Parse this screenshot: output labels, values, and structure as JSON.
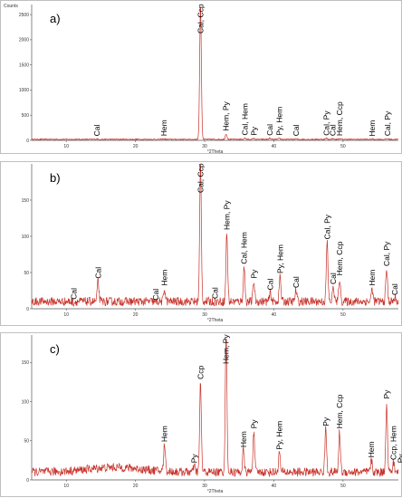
{
  "chart_data": [
    {
      "type": "line",
      "panel_label": "a)",
      "ylabel": "Counts",
      "xlabel": "°2Theta",
      "xlim": [
        5,
        58
      ],
      "ylim": [
        0,
        2700
      ],
      "x_ticks": [
        10,
        20,
        30,
        40,
        50
      ],
      "y_ticks": [
        0,
        500,
        1000,
        1500,
        2000,
        2500
      ],
      "baseline": 20,
      "peaks": [
        {
          "x": 14.4,
          "y": 28,
          "label": "Cal"
        },
        {
          "x": 24.1,
          "y": 30,
          "label": "Hem"
        },
        {
          "x": 29.4,
          "y": 2680,
          "label": "Cal, Ccp"
        },
        {
          "x": 33.1,
          "y": 130,
          "label": "Hem, Py"
        },
        {
          "x": 35.8,
          "y": 45,
          "label": "Cal, Hem"
        },
        {
          "x": 37.1,
          "y": 40,
          "label": "Py"
        },
        {
          "x": 39.4,
          "y": 40,
          "label": "Cal"
        },
        {
          "x": 40.8,
          "y": 40,
          "label": "Py, Hem"
        },
        {
          "x": 43.2,
          "y": 30,
          "label": "Cal"
        },
        {
          "x": 47.6,
          "y": 40,
          "label": "Cal, Py"
        },
        {
          "x": 48.5,
          "y": 35,
          "label": "Cal"
        },
        {
          "x": 49.5,
          "y": 35,
          "label": "Hem, Ccp"
        },
        {
          "x": 54.2,
          "y": 25,
          "label": "Hem"
        },
        {
          "x": 56.4,
          "y": 35,
          "label": "Cal, Py"
        }
      ]
    },
    {
      "type": "line",
      "panel_label": "b)",
      "ylabel": "",
      "xlabel": "°2Theta",
      "xlim": [
        5,
        58
      ],
      "ylim": [
        0,
        200
      ],
      "x_ticks": [
        10,
        20,
        30,
        40,
        50
      ],
      "y_ticks": [
        0,
        50,
        100,
        150
      ],
      "baseline": 10,
      "peaks": [
        {
          "x": 11.1,
          "y": 9,
          "label": "Cal"
        },
        {
          "x": 14.6,
          "y": 38,
          "label": "Cal"
        },
        {
          "x": 22.9,
          "y": 8,
          "label": "Cal"
        },
        {
          "x": 24.2,
          "y": 28,
          "label": "Hem"
        },
        {
          "x": 29.4,
          "y": 200,
          "label": "Cal, Ccp"
        },
        {
          "x": 31.5,
          "y": 10,
          "label": "Cal"
        },
        {
          "x": 33.2,
          "y": 105,
          "label": "Hem, Py"
        },
        {
          "x": 35.7,
          "y": 58,
          "label": "Cal, Hem"
        },
        {
          "x": 37.1,
          "y": 38,
          "label": "Py"
        },
        {
          "x": 39.5,
          "y": 22,
          "label": "Cal"
        },
        {
          "x": 40.9,
          "y": 45,
          "label": "Py, Hem"
        },
        {
          "x": 43.2,
          "y": 25,
          "label": "Cal"
        },
        {
          "x": 47.7,
          "y": 92,
          "label": "Cal, Py"
        },
        {
          "x": 48.6,
          "y": 30,
          "label": "Cal"
        },
        {
          "x": 49.5,
          "y": 42,
          "label": "Hem, Ccp"
        },
        {
          "x": 54.2,
          "y": 28,
          "label": "Hem"
        },
        {
          "x": 56.3,
          "y": 55,
          "label": "Cal, Py"
        },
        {
          "x": 57.5,
          "y": 15,
          "label": "Cal"
        }
      ]
    },
    {
      "type": "line",
      "panel_label": "c)",
      "ylabel": "",
      "xlabel": "°2Theta",
      "xlim": [
        5,
        58
      ],
      "ylim": [
        0,
        185
      ],
      "x_ticks": [
        10,
        20,
        30,
        40,
        50
      ],
      "y_ticks": [
        0,
        50,
        100,
        150
      ],
      "baseline": 10,
      "peaks": [
        {
          "x": 24.2,
          "y": 45,
          "label": "Hem"
        },
        {
          "x": 28.5,
          "y": 18,
          "label": "Py"
        },
        {
          "x": 29.4,
          "y": 125,
          "label": "Ccp"
        },
        {
          "x": 33.1,
          "y": 185,
          "label": "Hem, Py"
        },
        {
          "x": 35.6,
          "y": 38,
          "label": "Hem"
        },
        {
          "x": 37.1,
          "y": 62,
          "label": "Py"
        },
        {
          "x": 40.8,
          "y": 35,
          "label": "Py, Hem"
        },
        {
          "x": 47.5,
          "y": 65,
          "label": "Py"
        },
        {
          "x": 49.5,
          "y": 62,
          "label": "Hem, Ccp"
        },
        {
          "x": 54.1,
          "y": 25,
          "label": "Hem"
        },
        {
          "x": 56.3,
          "y": 100,
          "label": "Py"
        },
        {
          "x": 57.3,
          "y": 22,
          "label": "Ccp, Hem"
        },
        {
          "x": 58.3,
          "y": 18,
          "label": "Py"
        }
      ]
    }
  ]
}
